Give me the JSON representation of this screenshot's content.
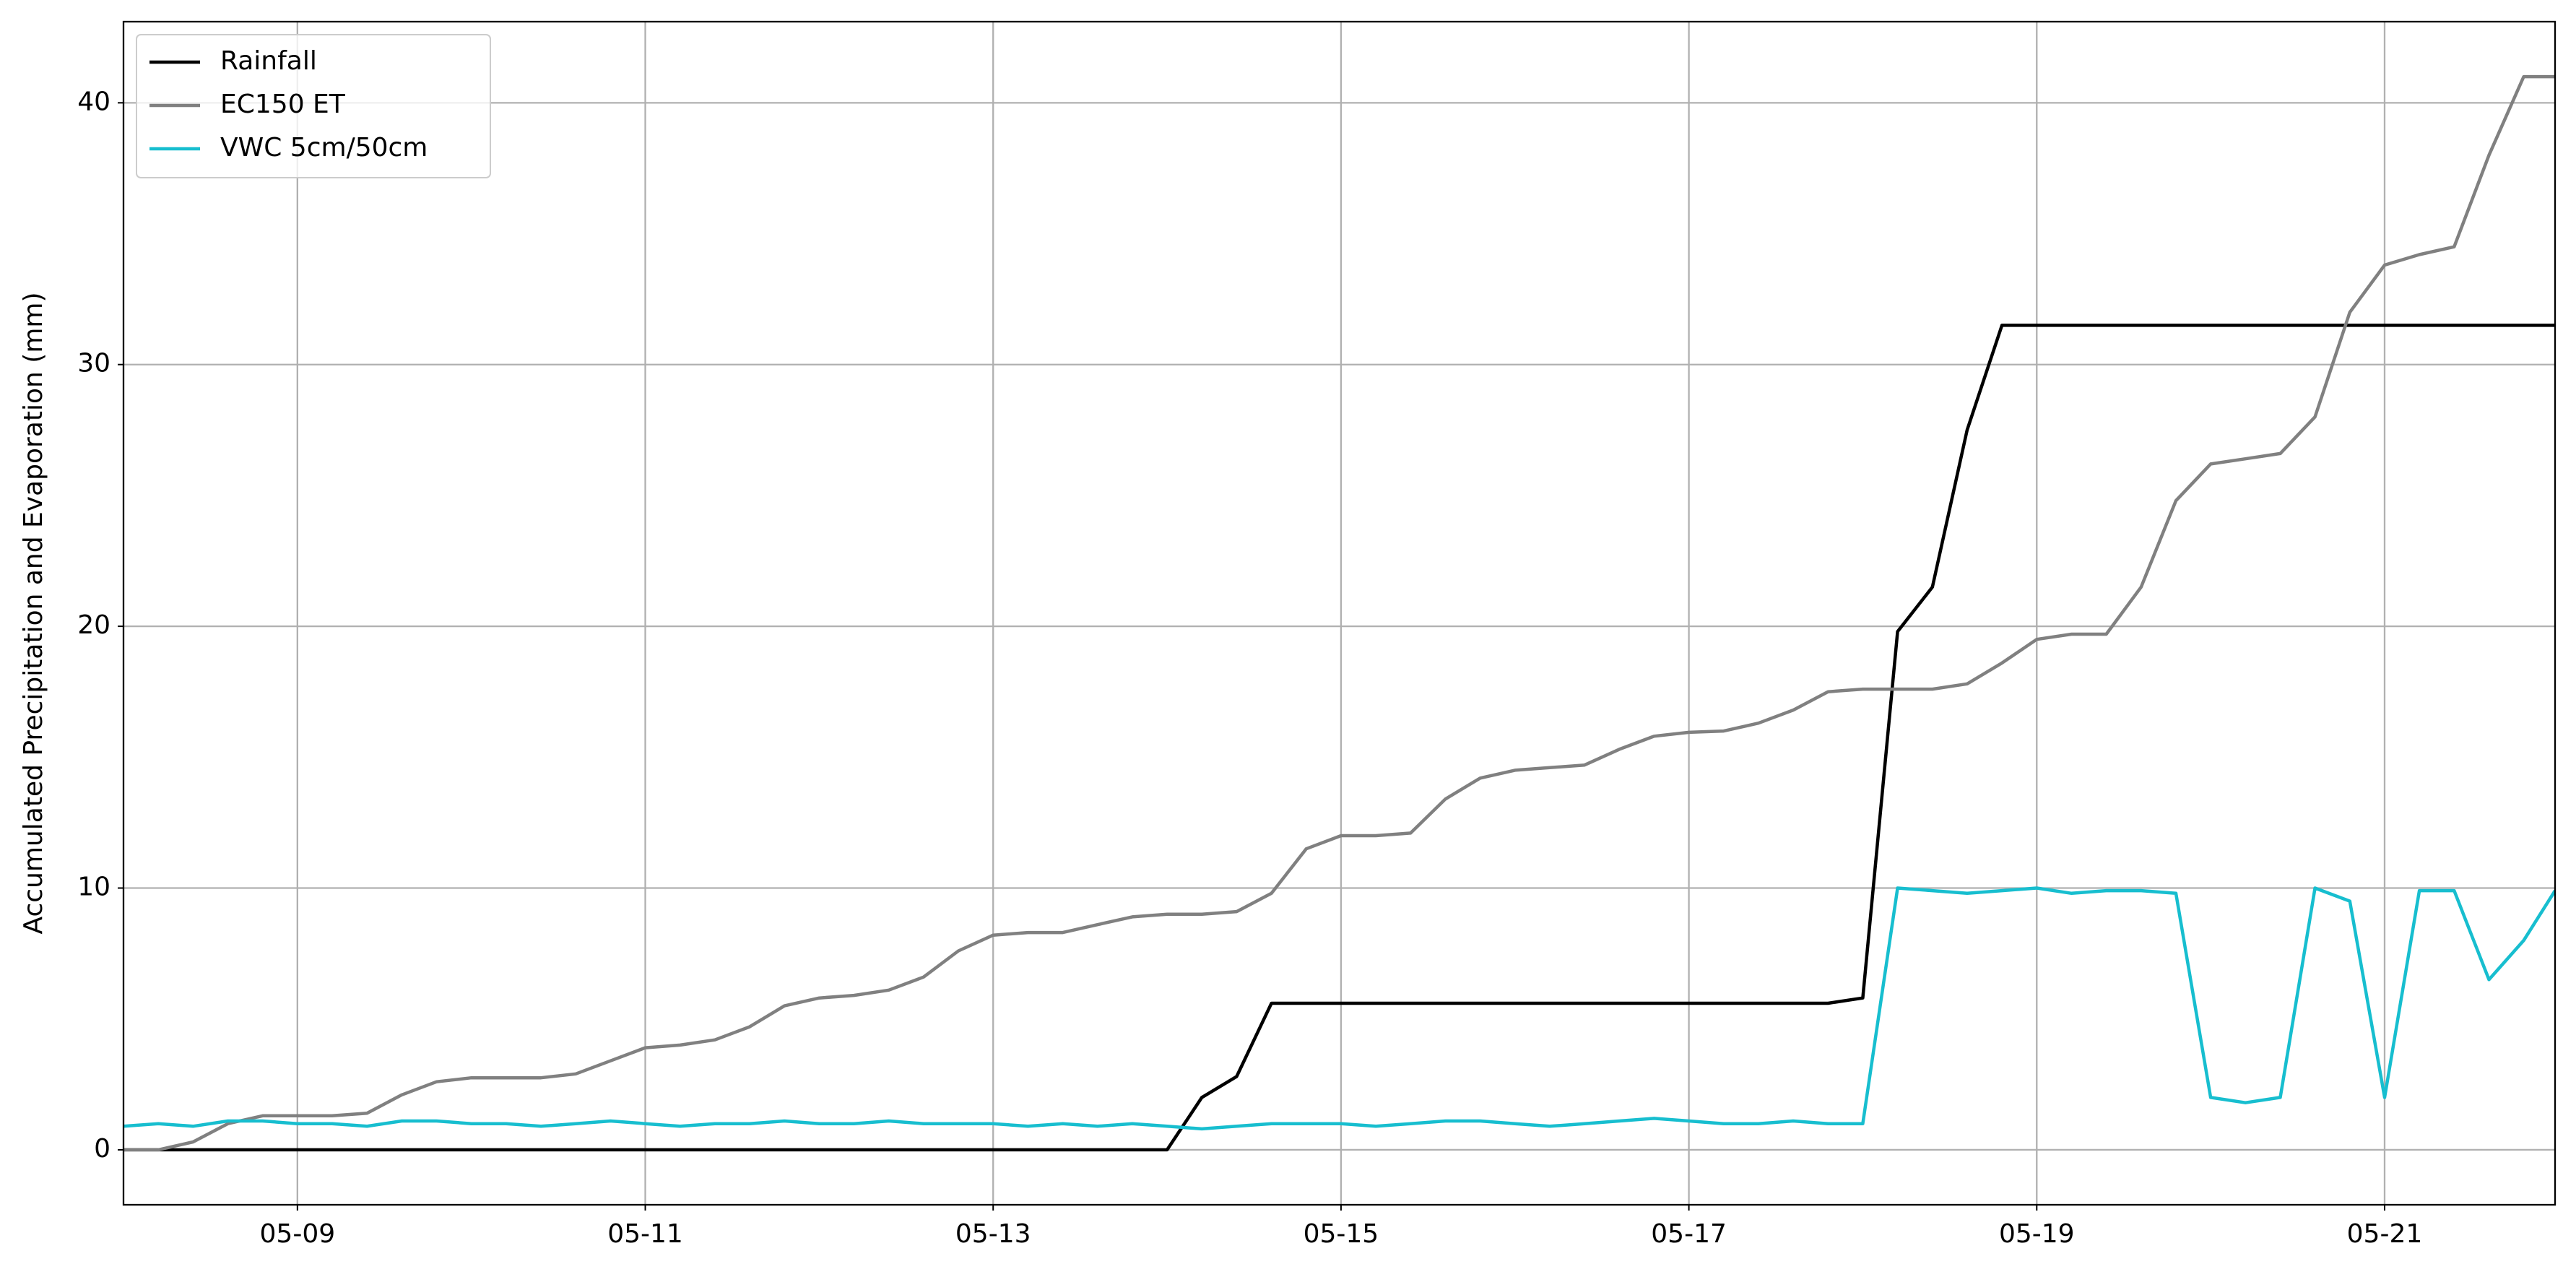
{
  "chart_data": {
    "type": "line",
    "ylabel": "Accumulated Precipitation and Evaporation (mm)",
    "x": [
      8,
      8.2,
      8.4,
      8.6,
      8.8,
      9,
      9.2,
      9.4,
      9.6,
      9.8,
      10,
      10.2,
      10.4,
      10.6,
      10.8,
      11,
      11.2,
      11.4,
      11.6,
      11.8,
      12,
      12.2,
      12.4,
      12.6,
      12.8,
      13,
      13.2,
      13.4,
      13.6,
      13.8,
      14,
      14.2,
      14.4,
      14.6,
      14.8,
      15,
      15.2,
      15.4,
      15.6,
      15.8,
      16,
      16.2,
      16.4,
      16.6,
      16.8,
      17,
      17.2,
      17.4,
      17.6,
      17.8,
      18,
      18.2,
      18.4,
      18.6,
      18.8,
      19,
      19.2,
      19.4,
      19.6,
      19.8,
      20,
      20.2,
      20.4,
      20.6,
      20.8,
      21,
      21.2,
      21.4,
      21.6,
      21.8,
      21.98
    ],
    "series": [
      {
        "name": "Rainfall",
        "color": "#000000",
        "values": [
          0,
          0,
          0,
          0,
          0,
          0,
          0,
          0,
          0,
          0,
          0,
          0,
          0,
          0,
          0,
          0,
          0,
          0,
          0,
          0,
          0,
          0,
          0,
          0,
          0,
          0,
          0,
          0,
          0,
          0,
          0,
          2.0,
          2.8,
          5.6,
          5.6,
          5.6,
          5.6,
          5.6,
          5.6,
          5.6,
          5.6,
          5.6,
          5.6,
          5.6,
          5.6,
          5.6,
          5.6,
          5.6,
          5.6,
          5.6,
          5.8,
          19.8,
          21.5,
          27.5,
          31.5,
          31.5,
          31.5,
          31.5,
          31.5,
          31.5,
          31.5,
          31.5,
          31.5,
          31.5,
          31.5,
          31.5,
          31.5,
          31.5,
          31.5,
          31.5,
          31.5
        ]
      },
      {
        "name": "EC150 ET",
        "color": "#808080",
        "values": [
          0,
          0,
          0.3,
          1.0,
          1.3,
          1.3,
          1.3,
          1.4,
          2.1,
          2.6,
          2.75,
          2.75,
          2.75,
          2.9,
          3.4,
          3.9,
          4.0,
          4.2,
          4.7,
          5.5,
          5.8,
          5.9,
          6.1,
          6.6,
          7.6,
          8.2,
          8.3,
          8.3,
          8.6,
          8.9,
          9.0,
          9.0,
          9.1,
          9.8,
          11.5,
          12.0,
          12.0,
          12.1,
          13.4,
          14.2,
          14.5,
          14.6,
          14.7,
          15.3,
          15.8,
          15.95,
          16.0,
          16.3,
          16.8,
          17.5,
          17.6,
          17.6,
          17.6,
          17.8,
          18.6,
          19.5,
          19.7,
          19.7,
          21.5,
          24.8,
          26.2,
          26.4,
          26.6,
          28.0,
          32.0,
          33.8,
          34.2,
          34.5,
          38.0,
          41.0,
          41.0
        ]
      },
      {
        "name": "VWC 5cm/50cm",
        "color": "#17becf",
        "values": [
          0.9,
          1.0,
          0.9,
          1.1,
          1.1,
          1.0,
          1.0,
          0.9,
          1.1,
          1.1,
          1.0,
          1.0,
          0.9,
          1.0,
          1.1,
          1.0,
          0.9,
          1.0,
          1.0,
          1.1,
          1.0,
          1.0,
          1.1,
          1.0,
          1.0,
          1.0,
          0.9,
          1.0,
          0.9,
          1.0,
          0.9,
          0.8,
          0.9,
          1.0,
          1.0,
          1.0,
          0.9,
          1.0,
          1.1,
          1.1,
          1.0,
          0.9,
          1.0,
          1.1,
          1.2,
          1.1,
          1.0,
          1.0,
          1.1,
          1.0,
          1.0,
          10.0,
          9.9,
          9.8,
          9.9,
          10.0,
          9.8,
          9.9,
          9.9,
          9.8,
          2.0,
          1.8,
          2.0,
          10.0,
          9.5,
          2.0,
          9.9,
          9.9,
          6.5,
          8.0,
          9.9
        ]
      }
    ],
    "xlim": [
      8.0,
      21.98
    ],
    "ylim": [
      -2.1,
      43.1
    ],
    "xticks": [
      {
        "value": 9,
        "label": "05-09"
      },
      {
        "value": 11,
        "label": "05-11"
      },
      {
        "value": 13,
        "label": "05-13"
      },
      {
        "value": 15,
        "label": "05-15"
      },
      {
        "value": 17,
        "label": "05-17"
      },
      {
        "value": 19,
        "label": "05-19"
      },
      {
        "value": 21,
        "label": "05-21"
      }
    ],
    "yticks": [
      0,
      10,
      20,
      30,
      40
    ],
    "grid": true,
    "legend": "upper left"
  }
}
